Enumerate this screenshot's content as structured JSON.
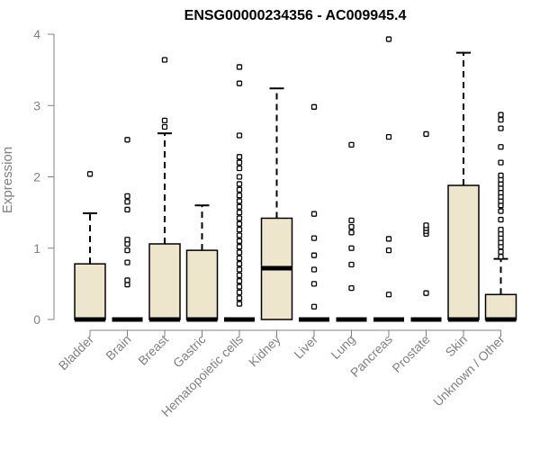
{
  "chart_data": {
    "type": "boxplot",
    "title": "ENSG00000234356 - AC009945.4",
    "xlabel": "",
    "ylabel": "Expression",
    "ylim": [
      0,
      4
    ],
    "yticks": [
      0,
      1,
      2,
      3,
      4
    ],
    "grid": false,
    "box_fill": "#ede6cc",
    "line_color": "#000000",
    "text_color": "#808080",
    "categories": [
      "Bladder",
      "Brain",
      "Breast",
      "Gastric",
      "Hematopoietic cells",
      "Kidney",
      "Liver",
      "Lung",
      "Pancreas",
      "Prostate",
      "Skin",
      "Unknown / Other"
    ],
    "boxes": [
      {
        "q1": 0,
        "median": 0,
        "q3": 0.78,
        "whisker_low": 0,
        "whisker_high": 1.49,
        "outliers": [
          2.04
        ]
      },
      {
        "q1": 0,
        "median": 0,
        "q3": 0,
        "whisker_low": 0,
        "whisker_high": 0,
        "outliers": [
          0.49,
          0.55,
          0.8,
          0.97,
          1.06,
          1.12,
          1.54,
          1.65,
          1.73,
          2.52
        ]
      },
      {
        "q1": 0,
        "median": 0,
        "q3": 1.06,
        "whisker_low": 0,
        "whisker_high": 2.61,
        "outliers": [
          2.7,
          2.79,
          3.64
        ]
      },
      {
        "q1": 0,
        "median": 0,
        "q3": 0.97,
        "whisker_low": 0,
        "whisker_high": 1.6,
        "outliers": []
      },
      {
        "q1": 0,
        "median": 0,
        "q3": 0,
        "whisker_low": 0,
        "whisker_high": 0,
        "outliers": [
          0.22,
          0.3,
          0.38,
          0.46,
          0.54,
          0.62,
          0.7,
          0.78,
          0.86,
          0.94,
          1.02,
          1.1,
          1.18,
          1.26,
          1.34,
          1.42,
          1.5,
          1.58,
          1.66,
          1.74,
          1.82,
          1.9,
          2.0,
          2.12,
          2.2,
          2.28,
          2.58,
          3.31,
          3.54
        ]
      },
      {
        "q1": 0,
        "median": 0.72,
        "q3": 1.42,
        "whisker_low": 0,
        "whisker_high": 3.24,
        "outliers": []
      },
      {
        "q1": 0,
        "median": 0,
        "q3": 0,
        "whisker_low": 0,
        "whisker_high": 0,
        "outliers": [
          0.18,
          0.5,
          0.7,
          0.9,
          1.14,
          1.48,
          2.98
        ]
      },
      {
        "q1": 0,
        "median": 0,
        "q3": 0,
        "whisker_low": 0,
        "whisker_high": 0,
        "outliers": [
          0.44,
          0.77,
          1.0,
          1.22,
          1.3,
          1.39,
          2.45
        ]
      },
      {
        "q1": 0,
        "median": 0,
        "q3": 0,
        "whisker_low": 0,
        "whisker_high": 0,
        "outliers": [
          0.35,
          0.97,
          1.13,
          2.56,
          3.93
        ]
      },
      {
        "q1": 0,
        "median": 0,
        "q3": 0,
        "whisker_low": 0,
        "whisker_high": 0,
        "outliers": [
          0.37,
          1.2,
          1.24,
          1.28,
          1.32,
          2.6
        ]
      },
      {
        "q1": 0,
        "median": 0,
        "q3": 1.88,
        "whisker_low": 0,
        "whisker_high": 3.74,
        "outliers": []
      },
      {
        "q1": 0,
        "median": 0,
        "q3": 0.35,
        "whisker_low": 0,
        "whisker_high": 0.85,
        "outliers": [
          0.88,
          0.95,
          1.02,
          1.08,
          1.14,
          1.2,
          1.26,
          1.4,
          1.52,
          1.6,
          1.66,
          1.72,
          1.78,
          1.84,
          1.9,
          1.96,
          2.02,
          2.2,
          2.42,
          2.68,
          2.8,
          2.87
        ]
      }
    ]
  }
}
